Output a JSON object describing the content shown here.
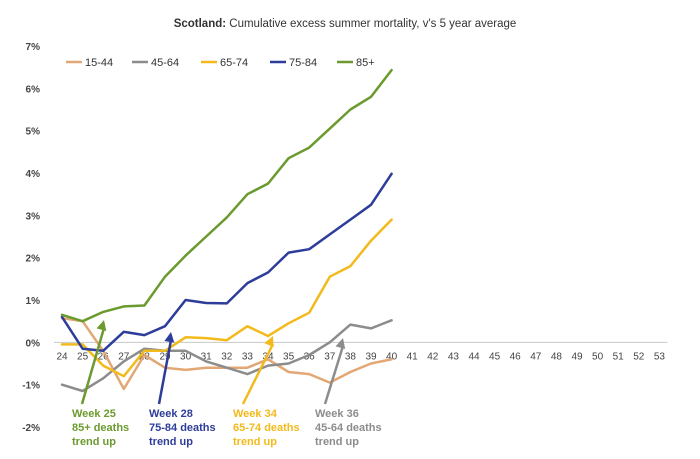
{
  "chart_data": {
    "type": "line",
    "title_bold": "Scotland:",
    "title_rest": " Cumulative excess summer mortality, v's 5 year average",
    "ylim": [
      -2,
      7
    ],
    "y_ticks": [
      "7%",
      "6%",
      "5%",
      "4%",
      "3%",
      "2%",
      "1%",
      "0%",
      "-1%",
      "-2%"
    ],
    "x_categories": [
      "24",
      "25",
      "26",
      "27",
      "28",
      "29",
      "30",
      "31",
      "32",
      "33",
      "34",
      "35",
      "36",
      "37",
      "38",
      "39",
      "40",
      "41",
      "42",
      "43",
      "44",
      "45",
      "46",
      "47",
      "48",
      "49",
      "50",
      "51",
      "52",
      "53"
    ],
    "series": [
      {
        "name": "15-44",
        "color": "#E3A774",
        "x": [
          24,
          25,
          26,
          27,
          28,
          29,
          30,
          31,
          32,
          33,
          34,
          35,
          36,
          37,
          38,
          39,
          40
        ],
        "values": [
          0.57,
          0.5,
          -0.2,
          -1.1,
          -0.3,
          -0.6,
          -0.65,
          -0.6,
          -0.6,
          -0.6,
          -0.4,
          -0.7,
          -0.75,
          -0.95,
          -0.7,
          -0.5,
          -0.4
        ]
      },
      {
        "name": "45-64",
        "color": "#8C8C8C",
        "x": [
          24,
          25,
          26,
          27,
          28,
          29,
          30,
          31,
          32,
          33,
          34,
          35,
          36,
          37,
          38,
          39,
          40
        ],
        "values": [
          -1.0,
          -1.15,
          -0.85,
          -0.45,
          -0.15,
          -0.2,
          -0.2,
          -0.45,
          -0.6,
          -0.75,
          -0.55,
          -0.5,
          -0.3,
          0.0,
          0.42,
          0.33,
          0.52
        ]
      },
      {
        "name": "65-74",
        "color": "#F2BA1C",
        "x": [
          24,
          25,
          26,
          27,
          28,
          29,
          30,
          31,
          32,
          33,
          34,
          35,
          36,
          37,
          38,
          39,
          40
        ],
        "values": [
          -0.05,
          -0.05,
          -0.55,
          -0.8,
          -0.2,
          -0.2,
          0.12,
          0.1,
          0.05,
          0.38,
          0.15,
          0.45,
          0.7,
          1.55,
          1.8,
          2.4,
          2.9
        ]
      },
      {
        "name": "75-84",
        "color": "#2E3D9A",
        "x": [
          24,
          25,
          26,
          27,
          28,
          29,
          30,
          31,
          32,
          33,
          34,
          35,
          36,
          37,
          38,
          39,
          40
        ],
        "values": [
          0.6,
          -0.15,
          -0.2,
          0.25,
          0.17,
          0.38,
          1.0,
          0.93,
          0.92,
          1.4,
          1.65,
          2.12,
          2.2,
          2.55,
          2.9,
          3.25,
          3.98
        ]
      },
      {
        "name": "85+",
        "color": "#6B9A2F",
        "x": [
          24,
          25,
          26,
          27,
          28,
          29,
          30,
          31,
          32,
          33,
          34,
          35,
          36,
          37,
          38,
          39,
          40
        ],
        "values": [
          0.65,
          0.5,
          0.72,
          0.85,
          0.87,
          1.55,
          2.05,
          2.5,
          2.95,
          3.5,
          3.75,
          4.35,
          4.6,
          5.05,
          5.5,
          5.8,
          6.43
        ]
      }
    ],
    "legend": {
      "position": "top-left"
    },
    "grid": false,
    "annotations": [
      {
        "lines": [
          "Week 25",
          "85+ deaths",
          "trend up"
        ],
        "color": "#6B9A2F"
      },
      {
        "lines": [
          "Week 28",
          "75-84 deaths",
          "trend up"
        ],
        "color": "#2E3D9A"
      },
      {
        "lines": [
          "Week 34",
          "65-74 deaths",
          "trend up"
        ],
        "color": "#F2BA1C"
      },
      {
        "lines": [
          "Week 36",
          "45-64 deaths",
          "trend up"
        ],
        "color": "#8C8C8C"
      }
    ]
  }
}
